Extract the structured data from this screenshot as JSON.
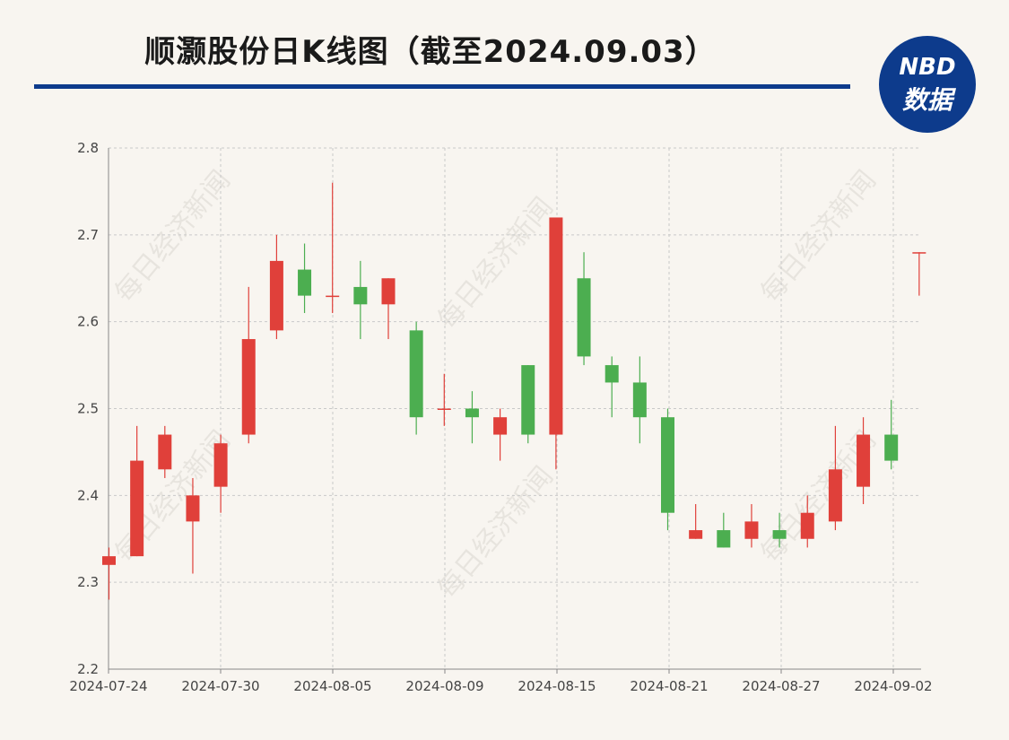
{
  "header": {
    "title": "顺灏股份日K线图（截至2024.09.03）",
    "badge_top": "NBD",
    "badge_bottom": "数据"
  },
  "watermark": "每日经济新闻",
  "colors": {
    "up": "#e0403a",
    "down": "#4cae50",
    "brand": "#0d3b8c",
    "grid": "#c9c9c9",
    "axis": "#888888"
  },
  "chart_data": {
    "type": "candlestick",
    "title": "顺灏股份日K线图（截至2024.09.03）",
    "ylim": [
      2.2,
      2.8
    ],
    "yticks": [
      2.2,
      2.3,
      2.4,
      2.5,
      2.6,
      2.7,
      2.8
    ],
    "xtick_labels": [
      "2024-07-24",
      "2024-07-30",
      "2024-08-05",
      "2024-08-09",
      "2024-08-15",
      "2024-08-21",
      "2024-08-27",
      "2024-09-02"
    ],
    "xtick_indices": [
      0,
      4,
      8,
      12,
      16,
      20,
      24,
      28
    ],
    "grid": true,
    "candles": [
      {
        "open": 2.32,
        "close": 2.33,
        "high": 2.34,
        "low": 2.28
      },
      {
        "open": 2.33,
        "close": 2.44,
        "high": 2.48,
        "low": 2.33
      },
      {
        "open": 2.43,
        "close": 2.47,
        "high": 2.48,
        "low": 2.42
      },
      {
        "open": 2.37,
        "close": 2.4,
        "high": 2.42,
        "low": 2.31
      },
      {
        "open": 2.41,
        "close": 2.46,
        "high": 2.47,
        "low": 2.38
      },
      {
        "open": 2.47,
        "close": 2.58,
        "high": 2.64,
        "low": 2.46
      },
      {
        "open": 2.59,
        "close": 2.67,
        "high": 2.7,
        "low": 2.58
      },
      {
        "open": 2.66,
        "close": 2.63,
        "high": 2.69,
        "low": 2.61
      },
      {
        "open": 2.63,
        "close": 2.63,
        "high": 2.76,
        "low": 2.61
      },
      {
        "open": 2.64,
        "close": 2.62,
        "high": 2.67,
        "low": 2.58
      },
      {
        "open": 2.62,
        "close": 2.65,
        "high": 2.65,
        "low": 2.58
      },
      {
        "open": 2.59,
        "close": 2.49,
        "high": 2.6,
        "low": 2.47
      },
      {
        "open": 2.5,
        "close": 2.5,
        "high": 2.54,
        "low": 2.48
      },
      {
        "open": 2.5,
        "close": 2.49,
        "high": 2.52,
        "low": 2.46
      },
      {
        "open": 2.47,
        "close": 2.49,
        "high": 2.5,
        "low": 2.44
      },
      {
        "open": 2.55,
        "close": 2.47,
        "high": 2.55,
        "low": 2.46
      },
      {
        "open": 2.47,
        "close": 2.72,
        "high": 2.72,
        "low": 2.43
      },
      {
        "open": 2.65,
        "close": 2.56,
        "high": 2.68,
        "low": 2.55
      },
      {
        "open": 2.55,
        "close": 2.53,
        "high": 2.56,
        "low": 2.49
      },
      {
        "open": 2.53,
        "close": 2.49,
        "high": 2.56,
        "low": 2.46
      },
      {
        "open": 2.49,
        "close": 2.38,
        "high": 2.5,
        "low": 2.36
      },
      {
        "open": 2.35,
        "close": 2.36,
        "high": 2.39,
        "low": 2.35
      },
      {
        "open": 2.36,
        "close": 2.34,
        "high": 2.38,
        "low": 2.34
      },
      {
        "open": 2.35,
        "close": 2.37,
        "high": 2.39,
        "low": 2.34
      },
      {
        "open": 2.36,
        "close": 2.35,
        "high": 2.38,
        "low": 2.34
      },
      {
        "open": 2.35,
        "close": 2.38,
        "high": 2.4,
        "low": 2.34
      },
      {
        "open": 2.37,
        "close": 2.43,
        "high": 2.48,
        "low": 2.36
      },
      {
        "open": 2.41,
        "close": 2.47,
        "high": 2.49,
        "low": 2.39
      },
      {
        "open": 2.47,
        "close": 2.44,
        "high": 2.51,
        "low": 2.43
      },
      {
        "open": 2.68,
        "close": 2.68,
        "high": 2.68,
        "low": 2.63
      }
    ]
  }
}
